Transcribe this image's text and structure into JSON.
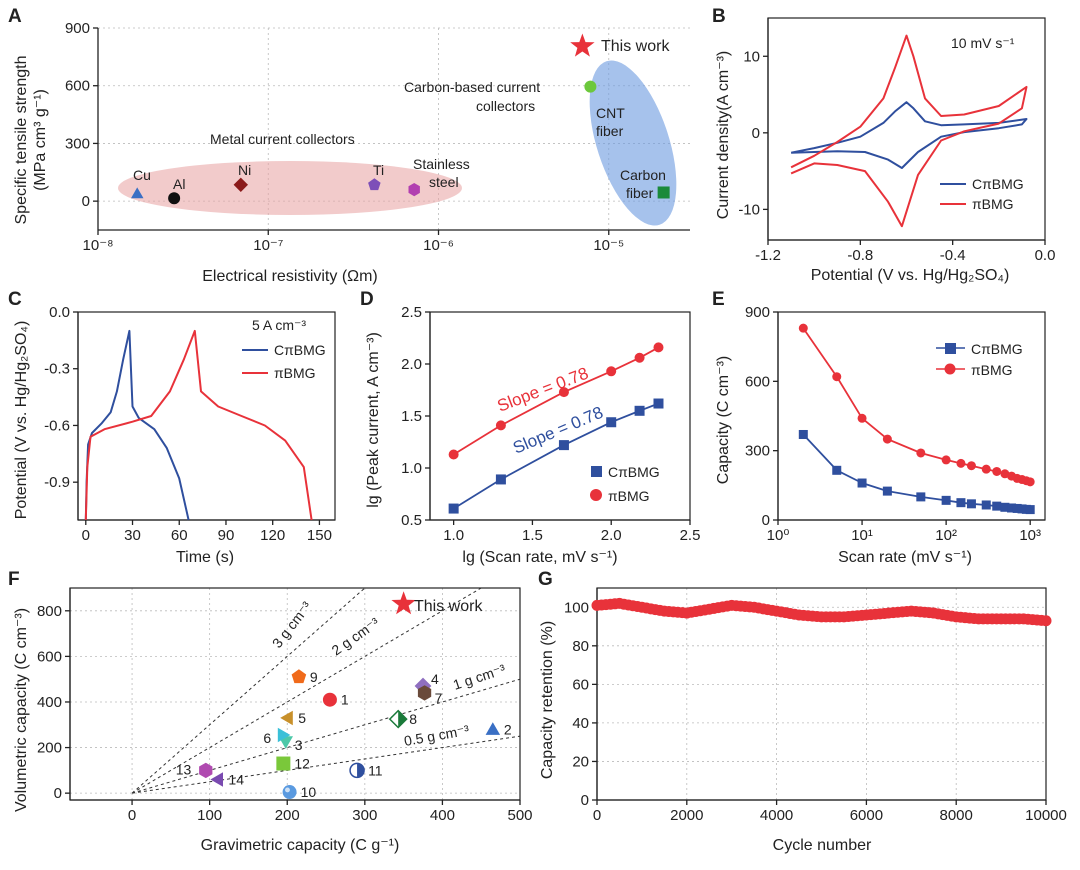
{
  "panels": {
    "A": {
      "letter": "A"
    },
    "B": {
      "letter": "B"
    },
    "C": {
      "letter": "C"
    },
    "D": {
      "letter": "D"
    },
    "E": {
      "letter": "E"
    },
    "F": {
      "letter": "F"
    },
    "G": {
      "letter": "G"
    }
  },
  "colors": {
    "blue": "#2f4f9e",
    "red": "#e8323a",
    "gray": "#555555"
  },
  "chart_data": [
    {
      "id": "A",
      "type": "scatter",
      "xlabel": "Electrical resistivity (Ωm)",
      "ylabel_line1": "Specific tensile strength",
      "ylabel_line2": "(MPa cm³ g⁻¹)",
      "xscale": "log",
      "xlim": [
        1e-08,
        3e-05
      ],
      "ylim": [
        -150,
        900
      ],
      "xtick_labels": [
        "10⁻⁸",
        "10⁻⁷",
        "10⁻⁶",
        "10⁻⁵"
      ],
      "xticks": [
        1e-08,
        1e-07,
        1e-06,
        1e-05
      ],
      "yticks": [
        0,
        300,
        600,
        900
      ],
      "groups": [
        {
          "label": "Metal current collectors"
        },
        {
          "label_line1": "Carbon-based current",
          "label_line2": "collectors"
        }
      ],
      "points": [
        {
          "label": "Cu",
          "x": 1.7e-08,
          "y": 40,
          "marker": "triangle",
          "color": "#3a6fc4"
        },
        {
          "label": "Al",
          "x": 2.8e-08,
          "y": 15,
          "marker": "circle",
          "color": "#111111"
        },
        {
          "label": "Ni",
          "x": 6.9e-08,
          "y": 85,
          "marker": "diamond",
          "color": "#8b1a1a"
        },
        {
          "label": "Ti",
          "x": 4.2e-07,
          "y": 85,
          "marker": "pentagon",
          "color": "#7d4fb8"
        },
        {
          "label_line1": "Stainless",
          "label_line2": "steel",
          "x": 7.2e-07,
          "y": 60,
          "marker": "hexagon",
          "color": "#b23fb0"
        },
        {
          "label_line1": "CNT",
          "label_line2": "fiber",
          "x": 7.8e-06,
          "y": 595,
          "marker": "circle",
          "color": "#6cc83c"
        },
        {
          "label_line1": "Carbon",
          "label_line2": "fiber",
          "x": 2.1e-05,
          "y": 45,
          "marker": "square",
          "color": "#1a8a3a"
        },
        {
          "label": "This work",
          "x": 7e-06,
          "y": 805,
          "marker": "star",
          "color": "#e8323a"
        }
      ]
    },
    {
      "id": "B",
      "type": "line",
      "xlabel": "Potential (V vs. Hg/Hg₂SO₄)",
      "ylabel": "Current density(A cm⁻³)",
      "xlim": [
        -1.2,
        0.0
      ],
      "ylim": [
        -14,
        15
      ],
      "xticks": [
        -1.2,
        -0.8,
        -0.4,
        0.0
      ],
      "xtick_labels": [
        "-1.2",
        "-0.8",
        "-0.4",
        "0.0"
      ],
      "yticks": [
        -10,
        0,
        10
      ],
      "note": "10 mV s⁻¹",
      "series": [
        {
          "name": "CπBMG",
          "color": "#2f4f9e",
          "upper": [
            [
              -1.1,
              -2.6
            ],
            [
              -1.0,
              -2.0
            ],
            [
              -0.9,
              -1.3
            ],
            [
              -0.8,
              -0.5
            ],
            [
              -0.7,
              1.3
            ],
            [
              -0.65,
              2.8
            ],
            [
              -0.6,
              4.0
            ],
            [
              -0.57,
              3.2
            ],
            [
              -0.52,
              1.5
            ],
            [
              -0.45,
              1.0
            ],
            [
              -0.35,
              1.1
            ],
            [
              -0.2,
              1.3
            ],
            [
              -0.08,
              1.8
            ]
          ],
          "lower": [
            [
              -0.08,
              1.8
            ],
            [
              -0.1,
              1.1
            ],
            [
              -0.2,
              0.6
            ],
            [
              -0.35,
              0.1
            ],
            [
              -0.45,
              -0.5
            ],
            [
              -0.55,
              -2.5
            ],
            [
              -0.62,
              -4.6
            ],
            [
              -0.68,
              -3.5
            ],
            [
              -0.78,
              -2.5
            ],
            [
              -0.9,
              -2.4
            ],
            [
              -1.0,
              -2.5
            ],
            [
              -1.1,
              -2.6
            ]
          ]
        },
        {
          "name": "πBMG",
          "color": "#e8323a",
          "upper": [
            [
              -1.1,
              -4.5
            ],
            [
              -1.0,
              -3.0
            ],
            [
              -0.9,
              -1.2
            ],
            [
              -0.8,
              0.8
            ],
            [
              -0.7,
              4.5
            ],
            [
              -0.65,
              8.5
            ],
            [
              -0.6,
              12.7
            ],
            [
              -0.57,
              10.0
            ],
            [
              -0.52,
              4.5
            ],
            [
              -0.45,
              2.2
            ],
            [
              -0.35,
              2.4
            ],
            [
              -0.2,
              3.5
            ],
            [
              -0.08,
              6.0
            ]
          ],
          "lower": [
            [
              -0.08,
              6.0
            ],
            [
              -0.1,
              3.2
            ],
            [
              -0.2,
              1.2
            ],
            [
              -0.35,
              0.2
            ],
            [
              -0.45,
              -1.0
            ],
            [
              -0.55,
              -5.5
            ],
            [
              -0.62,
              -12.2
            ],
            [
              -0.68,
              -9.0
            ],
            [
              -0.78,
              -5.0
            ],
            [
              -0.9,
              -4.2
            ],
            [
              -1.0,
              -4.0
            ],
            [
              -1.1,
              -5.3
            ]
          ]
        }
      ]
    },
    {
      "id": "C",
      "type": "line",
      "xlabel": "Time (s)",
      "ylabel": "Potential (V vs. Hg/Hg₂SO₄)",
      "xlim": [
        -5,
        160
      ],
      "ylim": [
        -1.1,
        0.0
      ],
      "xticks": [
        0,
        30,
        60,
        90,
        120,
        150
      ],
      "yticks": [
        0.0,
        -0.3,
        -0.6,
        -0.9
      ],
      "ytick_labels": [
        "0.0",
        "-0.3",
        "-0.6",
        "-0.9"
      ],
      "note": "5 A cm⁻³",
      "series": [
        {
          "name": "CπBMG",
          "color": "#2f4f9e",
          "points": [
            [
              0,
              -1.1
            ],
            [
              0.5,
              -0.9
            ],
            [
              1.5,
              -0.7
            ],
            [
              4,
              -0.64
            ],
            [
              10,
              -0.59
            ],
            [
              16,
              -0.53
            ],
            [
              20,
              -0.42
            ],
            [
              24,
              -0.25
            ],
            [
              28,
              -0.1
            ],
            [
              30,
              -0.5
            ],
            [
              34,
              -0.56
            ],
            [
              44,
              -0.62
            ],
            [
              52,
              -0.72
            ],
            [
              60,
              -0.88
            ],
            [
              66,
              -1.1
            ]
          ]
        },
        {
          "name": "πBMG",
          "color": "#e8323a",
          "points": [
            [
              0,
              -1.1
            ],
            [
              1,
              -0.82
            ],
            [
              3,
              -0.66
            ],
            [
              12,
              -0.62
            ],
            [
              30,
              -0.58
            ],
            [
              42,
              -0.55
            ],
            [
              54,
              -0.42
            ],
            [
              63,
              -0.25
            ],
            [
              70,
              -0.1
            ],
            [
              74,
              -0.42
            ],
            [
              85,
              -0.5
            ],
            [
              100,
              -0.55
            ],
            [
              115,
              -0.6
            ],
            [
              128,
              -0.68
            ],
            [
              140,
              -0.82
            ],
            [
              145,
              -1.1
            ]
          ]
        }
      ]
    },
    {
      "id": "D",
      "type": "scatter",
      "xlabel": "lg (Scan rate, mV s⁻¹)",
      "ylabel": "lg (Peak current, A cm⁻³)",
      "xlim": [
        0.85,
        2.5
      ],
      "ylim": [
        0.5,
        2.5
      ],
      "xticks": [
        1.0,
        1.5,
        2.0,
        2.5
      ],
      "xtick_labels": [
        "1.0",
        "1.5",
        "2.0",
        "2.5"
      ],
      "yticks": [
        0.5,
        1.0,
        1.5,
        2.0,
        2.5
      ],
      "ytick_labels": [
        "0.5",
        "1.0",
        "1.5",
        "2.0",
        "2.5"
      ],
      "annotations": [
        "Slope = 0.78",
        "Slope = 0.78"
      ],
      "series": [
        {
          "name": "CπBMG",
          "color": "#2f4f9e",
          "marker": "square",
          "x": [
            1.0,
            1.3,
            1.7,
            2.0,
            2.18,
            2.3
          ],
          "y": [
            0.61,
            0.89,
            1.22,
            1.44,
            1.55,
            1.62
          ]
        },
        {
          "name": "πBMG",
          "color": "#e8323a",
          "marker": "circle",
          "x": [
            1.0,
            1.3,
            1.7,
            2.0,
            2.18,
            2.3
          ],
          "y": [
            1.13,
            1.41,
            1.73,
            1.93,
            2.06,
            2.16
          ]
        }
      ]
    },
    {
      "id": "E",
      "type": "line",
      "xlabel": "Scan rate (mV s⁻¹)",
      "ylabel": "Capacity (C cm⁻³)",
      "xscale": "log",
      "xlim": [
        1,
        1500
      ],
      "ylim": [
        0,
        900
      ],
      "xticks": [
        1,
        10,
        100,
        1000
      ],
      "xtick_labels": [
        "10⁰",
        "10¹",
        "10²",
        "10³"
      ],
      "yticks": [
        0,
        300,
        600,
        900
      ],
      "series": [
        {
          "name": "CπBMG",
          "color": "#2f4f9e",
          "marker": "square",
          "x": [
            2,
            5,
            10,
            20,
            50,
            100,
            150,
            200,
            300,
            400,
            500,
            600,
            700,
            800,
            900,
            1000
          ],
          "y": [
            370,
            215,
            160,
            125,
            100,
            85,
            75,
            70,
            65,
            60,
            55,
            52,
            50,
            48,
            46,
            45
          ]
        },
        {
          "name": "πBMG",
          "color": "#e8323a",
          "marker": "circle",
          "x": [
            2,
            5,
            10,
            20,
            50,
            100,
            150,
            200,
            300,
            400,
            500,
            600,
            700,
            800,
            900,
            1000
          ],
          "y": [
            830,
            620,
            440,
            350,
            290,
            260,
            245,
            235,
            220,
            210,
            200,
            190,
            180,
            175,
            170,
            165
          ]
        }
      ]
    },
    {
      "id": "F",
      "type": "scatter",
      "xlabel": "Gravimetric capacity (C g⁻¹)",
      "ylabel": "Volumetric capacity (C cm⁻³)",
      "xlim": [
        -80,
        500
      ],
      "ylim": [
        -30,
        900
      ],
      "xticks": [
        0,
        100,
        200,
        300,
        400,
        500
      ],
      "yticks": [
        0,
        200,
        400,
        600,
        800
      ],
      "density_lines": [
        {
          "label": "3 g cm⁻³",
          "density": 3
        },
        {
          "label": "2 g cm⁻³",
          "density": 2
        },
        {
          "label": "1 g cm⁻³",
          "density": 1
        },
        {
          "label": "0.5 g cm⁻³",
          "density": 0.5
        }
      ],
      "points": [
        {
          "label": "1",
          "x": 255,
          "y": 410,
          "marker": "circle",
          "color": "#e8323a"
        },
        {
          "label": "2",
          "x": 465,
          "y": 280,
          "marker": "triangle",
          "color": "#3a6fc4"
        },
        {
          "label": "3",
          "x": 198,
          "y": 225,
          "marker": "tri-down",
          "color": "#4cc8a8"
        },
        {
          "label": "4",
          "x": 375,
          "y": 470,
          "marker": "diamond",
          "color": "#8f6fc0"
        },
        {
          "label": "5",
          "x": 200,
          "y": 330,
          "marker": "tri-left",
          "color": "#c8902a"
        },
        {
          "label": "6",
          "x": 195,
          "y": 255,
          "marker": "tri-right",
          "color": "#3ac0d8"
        },
        {
          "label": "7",
          "x": 377,
          "y": 440,
          "marker": "hexagon",
          "color": "#6a4a3a"
        },
        {
          "label": "8",
          "x": 343,
          "y": 325,
          "marker": "half-diamond",
          "color": "#1a7a3a"
        },
        {
          "label": "9",
          "x": 215,
          "y": 510,
          "marker": "pentagon",
          "color": "#f06a1a"
        },
        {
          "label": "10",
          "x": 203,
          "y": 5,
          "marker": "sphere",
          "color": "#5a9ae0"
        },
        {
          "label": "11",
          "x": 290,
          "y": 100,
          "marker": "half-circle",
          "color": "#2f4f9e"
        },
        {
          "label": "12",
          "x": 195,
          "y": 130,
          "marker": "square",
          "color": "#7ac83a"
        },
        {
          "label": "13",
          "x": 95,
          "y": 100,
          "marker": "hexagon",
          "color": "#b04ab0"
        },
        {
          "label": "14",
          "x": 110,
          "y": 60,
          "marker": "tri-left",
          "color": "#7a4ab0"
        },
        {
          "label": "This work",
          "x": 350,
          "y": 830,
          "marker": "star",
          "color": "#e8323a"
        }
      ]
    },
    {
      "id": "G",
      "type": "scatter",
      "xlabel": "Cycle number",
      "ylabel": "Capacity retention (%)",
      "xlim": [
        0,
        10000
      ],
      "ylim": [
        0,
        110
      ],
      "xticks": [
        0,
        2000,
        4000,
        6000,
        8000,
        10000
      ],
      "yticks": [
        0,
        20,
        40,
        60,
        80,
        100
      ],
      "series": [
        {
          "name": "",
          "color": "#e8323a",
          "marker": "circle",
          "x": [
            0,
            500,
            1000,
            1500,
            2000,
            2500,
            3000,
            3500,
            4000,
            4500,
            5000,
            5500,
            6000,
            6500,
            7000,
            7500,
            8000,
            8500,
            9000,
            9500,
            10000
          ],
          "y": [
            101,
            102,
            100,
            98,
            97,
            99,
            101,
            100,
            98,
            96,
            95,
            95,
            96,
            97,
            98,
            97,
            95,
            94,
            94,
            94,
            93
          ]
        }
      ]
    }
  ]
}
